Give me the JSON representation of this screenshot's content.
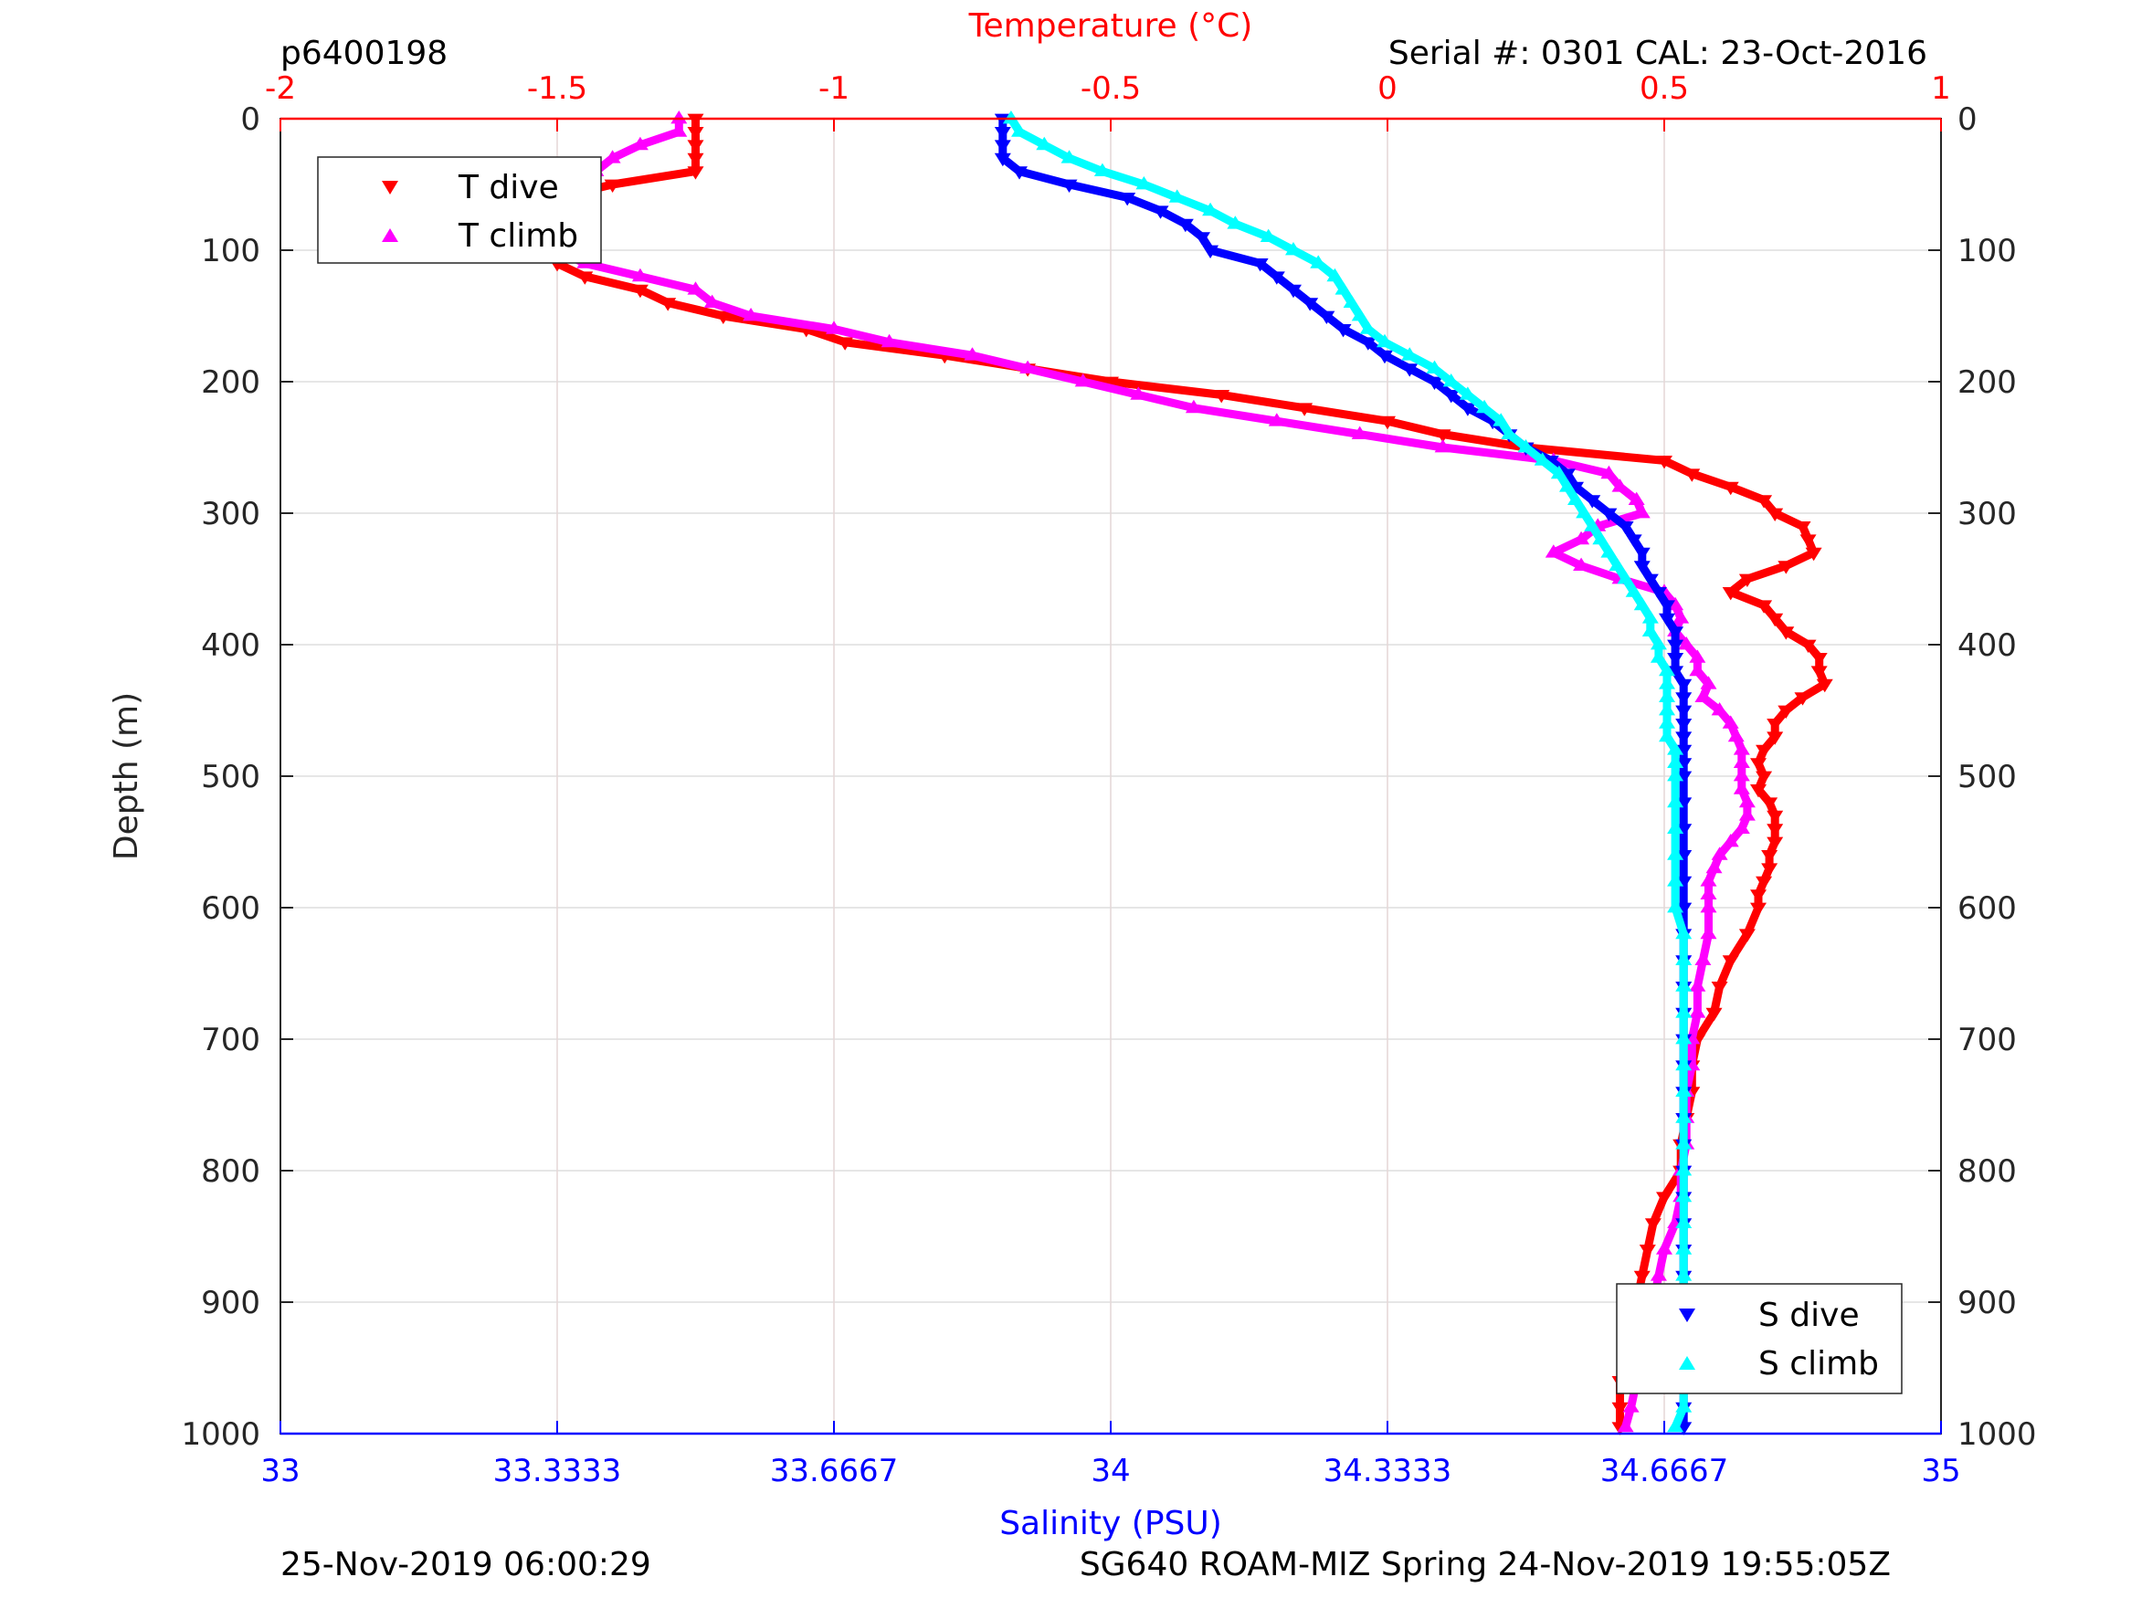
{
  "header": {
    "profile_id": "p6400198",
    "serial_cal": "Serial #: 0301  CAL: 23-Oct-2016"
  },
  "footer": {
    "left": "25-Nov-2019 06:00:29",
    "right": "SG640 ROAM-MIZ Spring 24-Nov-2019 19:55:05Z"
  },
  "colors": {
    "t_dive": "#ff0000",
    "t_climb": "#ff00ff",
    "s_dive": "#0000ff",
    "s_climb": "#00ffff",
    "temp_axis": "#ff0000",
    "sal_axis": "#0000ff",
    "grid": "#dddddd",
    "temp_grid": "#ffcccc"
  },
  "chart_data": {
    "type": "scatter",
    "title": "",
    "ylabel": "Depth (m)",
    "ylim": [
      0,
      1000
    ],
    "y_reversed": true,
    "y_ticks": [
      "0",
      "100",
      "200",
      "300",
      "400",
      "500",
      "600",
      "700",
      "800",
      "900",
      "1000"
    ],
    "y_tick_values": [
      0,
      100,
      200,
      300,
      400,
      500,
      600,
      700,
      800,
      900,
      1000
    ],
    "temperature_axis": {
      "label": "Temperature (°C)",
      "lim": [
        -2,
        1
      ],
      "position": "top",
      "ticks": [
        "-2",
        "-1.5",
        "-1",
        "-0.5",
        "0",
        "0.5",
        "1"
      ],
      "tick_values": [
        -2,
        -1.5,
        -1,
        -0.5,
        0,
        0.5,
        1
      ]
    },
    "salinity_axis": {
      "label": "Salinity (PSU)",
      "lim": [
        33,
        35
      ],
      "position": "bottom",
      "ticks": [
        "33",
        "33.3333",
        "33.6667",
        "34",
        "34.3333",
        "34.6667",
        "35"
      ],
      "tick_values": [
        33,
        33.3333,
        33.6667,
        34,
        34.3333,
        34.6667,
        35
      ]
    },
    "legends": [
      {
        "placement": "top-left",
        "entries": [
          "T dive",
          "T climb"
        ]
      },
      {
        "placement": "bottom-right",
        "entries": [
          "S dive",
          "S climb"
        ]
      }
    ],
    "series": [
      {
        "name": "T dive",
        "axis": "temperature",
        "marker": "triangle-down",
        "depth": [
          0,
          10,
          20,
          30,
          40,
          50,
          60,
          70,
          80,
          90,
          100,
          110,
          120,
          130,
          140,
          150,
          160,
          170,
          180,
          190,
          200,
          210,
          220,
          230,
          240,
          250,
          260,
          270,
          280,
          290,
          300,
          310,
          320,
          330,
          340,
          350,
          360,
          370,
          380,
          390,
          400,
          410,
          420,
          430,
          440,
          450,
          460,
          470,
          480,
          490,
          500,
          510,
          520,
          530,
          540,
          550,
          560,
          570,
          580,
          590,
          600,
          620,
          640,
          660,
          680,
          700,
          720,
          740,
          760,
          780,
          800,
          820,
          840,
          860,
          880,
          900,
          920,
          940,
          960,
          980,
          995
        ],
        "values": [
          -1.25,
          -1.25,
          -1.25,
          -1.25,
          -1.25,
          -1.4,
          -1.5,
          -1.52,
          -1.52,
          -1.48,
          -1.48,
          -1.5,
          -1.45,
          -1.35,
          -1.3,
          -1.2,
          -1.05,
          -0.98,
          -0.8,
          -0.65,
          -0.5,
          -0.3,
          -0.15,
          0.0,
          0.1,
          0.25,
          0.5,
          0.55,
          0.62,
          0.68,
          0.7,
          0.75,
          0.76,
          0.77,
          0.72,
          0.65,
          0.62,
          0.68,
          0.7,
          0.72,
          0.76,
          0.78,
          0.78,
          0.79,
          0.75,
          0.72,
          0.7,
          0.7,
          0.68,
          0.67,
          0.68,
          0.67,
          0.69,
          0.7,
          0.7,
          0.7,
          0.69,
          0.69,
          0.68,
          0.67,
          0.67,
          0.65,
          0.62,
          0.6,
          0.59,
          0.56,
          0.55,
          0.55,
          0.54,
          0.53,
          0.53,
          0.5,
          0.48,
          0.47,
          0.46,
          0.45,
          0.44,
          0.43,
          0.42,
          0.42,
          0.42
        ]
      },
      {
        "name": "T climb",
        "axis": "temperature",
        "marker": "triangle-up",
        "depth": [
          0,
          10,
          20,
          30,
          40,
          50,
          60,
          70,
          80,
          90,
          100,
          110,
          120,
          130,
          140,
          150,
          160,
          170,
          180,
          190,
          200,
          210,
          220,
          230,
          240,
          250,
          260,
          270,
          280,
          290,
          300,
          310,
          320,
          330,
          340,
          350,
          360,
          370,
          380,
          390,
          400,
          410,
          420,
          430,
          440,
          450,
          460,
          470,
          480,
          490,
          500,
          510,
          520,
          530,
          540,
          550,
          560,
          570,
          580,
          590,
          600,
          620,
          640,
          660,
          680,
          700,
          720,
          740,
          760,
          780,
          800,
          820,
          840,
          860,
          880,
          900,
          920,
          940,
          960,
          980,
          995
        ],
        "values": [
          -1.28,
          -1.28,
          -1.35,
          -1.4,
          -1.43,
          -1.48,
          -1.53,
          -1.55,
          -1.52,
          -1.5,
          -1.5,
          -1.45,
          -1.35,
          -1.25,
          -1.22,
          -1.15,
          -1.0,
          -0.9,
          -0.75,
          -0.65,
          -0.55,
          -0.45,
          -0.35,
          -0.2,
          -0.05,
          0.1,
          0.3,
          0.4,
          0.42,
          0.45,
          0.46,
          0.38,
          0.35,
          0.3,
          0.35,
          0.42,
          0.5,
          0.52,
          0.53,
          0.52,
          0.54,
          0.56,
          0.56,
          0.58,
          0.57,
          0.6,
          0.62,
          0.63,
          0.64,
          0.64,
          0.64,
          0.64,
          0.65,
          0.65,
          0.64,
          0.62,
          0.6,
          0.59,
          0.58,
          0.58,
          0.58,
          0.58,
          0.57,
          0.56,
          0.56,
          0.55,
          0.55,
          0.54,
          0.54,
          0.54,
          0.53,
          0.53,
          0.52,
          0.5,
          0.49,
          0.48,
          0.47,
          0.46,
          0.45,
          0.44,
          0.43
        ]
      },
      {
        "name": "S dive",
        "axis": "salinity",
        "marker": "triangle-down",
        "depth": [
          0,
          10,
          20,
          30,
          40,
          50,
          60,
          70,
          80,
          90,
          100,
          110,
          120,
          130,
          140,
          150,
          160,
          170,
          180,
          190,
          200,
          210,
          220,
          230,
          240,
          250,
          260,
          270,
          280,
          290,
          300,
          310,
          320,
          330,
          340,
          350,
          360,
          370,
          380,
          390,
          400,
          410,
          420,
          430,
          440,
          450,
          460,
          470,
          480,
          490,
          500,
          520,
          540,
          560,
          580,
          600,
          620,
          640,
          660,
          680,
          700,
          720,
          740,
          760,
          780,
          800,
          820,
          840,
          860,
          880,
          900,
          920,
          940,
          960,
          980,
          995
        ],
        "values": [
          33.87,
          33.87,
          33.87,
          33.87,
          33.89,
          33.95,
          34.02,
          34.06,
          34.09,
          34.11,
          34.12,
          34.18,
          34.2,
          34.22,
          34.24,
          34.26,
          34.28,
          34.31,
          34.33,
          34.36,
          34.39,
          34.41,
          34.43,
          34.46,
          34.48,
          34.5,
          34.53,
          34.55,
          34.56,
          34.58,
          34.6,
          34.62,
          34.63,
          34.64,
          34.64,
          34.65,
          34.66,
          34.67,
          34.67,
          34.68,
          34.68,
          34.68,
          34.68,
          34.69,
          34.69,
          34.69,
          34.69,
          34.69,
          34.69,
          34.69,
          34.69,
          34.69,
          34.69,
          34.69,
          34.69,
          34.69,
          34.69,
          34.69,
          34.69,
          34.69,
          34.69,
          34.69,
          34.69,
          34.69,
          34.69,
          34.69,
          34.69,
          34.69,
          34.69,
          34.69,
          34.69,
          34.69,
          34.69,
          34.69,
          34.69,
          34.69
        ]
      },
      {
        "name": "S climb",
        "axis": "salinity",
        "marker": "triangle-up",
        "depth": [
          0,
          10,
          20,
          30,
          40,
          50,
          60,
          70,
          80,
          90,
          100,
          110,
          120,
          130,
          140,
          150,
          160,
          170,
          180,
          190,
          200,
          210,
          220,
          230,
          240,
          250,
          260,
          270,
          280,
          290,
          300,
          310,
          320,
          330,
          340,
          350,
          360,
          370,
          380,
          390,
          400,
          410,
          420,
          430,
          440,
          450,
          460,
          470,
          480,
          490,
          500,
          520,
          540,
          560,
          580,
          600,
          620,
          640,
          660,
          680,
          700,
          720,
          740,
          760,
          780,
          800,
          820,
          840,
          860,
          880,
          900,
          920,
          940,
          960,
          980,
          995
        ],
        "values": [
          33.88,
          33.89,
          33.92,
          33.95,
          33.99,
          34.04,
          34.08,
          34.12,
          34.15,
          34.19,
          34.22,
          34.25,
          34.27,
          34.28,
          34.29,
          34.3,
          34.31,
          34.33,
          34.36,
          34.39,
          34.41,
          34.43,
          34.45,
          34.47,
          34.48,
          34.5,
          34.52,
          34.54,
          34.55,
          34.56,
          34.57,
          34.58,
          34.59,
          34.6,
          34.61,
          34.62,
          34.63,
          34.64,
          34.65,
          34.65,
          34.66,
          34.66,
          34.67,
          34.67,
          34.67,
          34.67,
          34.67,
          34.67,
          34.68,
          34.68,
          34.68,
          34.68,
          34.68,
          34.68,
          34.68,
          34.68,
          34.69,
          34.69,
          34.69,
          34.69,
          34.69,
          34.69,
          34.69,
          34.69,
          34.69,
          34.69,
          34.69,
          34.69,
          34.69,
          34.69,
          34.69,
          34.69,
          34.69,
          34.69,
          34.69,
          34.68
        ]
      }
    ]
  }
}
